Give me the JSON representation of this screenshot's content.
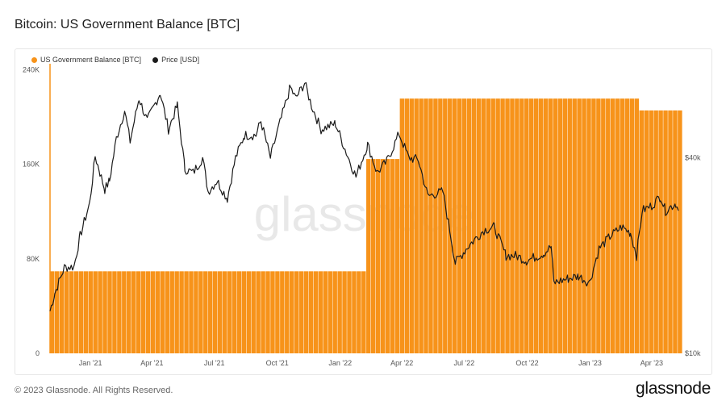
{
  "title": "Bitcoin: US Government Balance [BTC]",
  "footer": {
    "copyright": "© 2023 Glassnode. All Rights Reserved.",
    "logo": "glassnode"
  },
  "watermark": "glassnode",
  "colors": {
    "balance": "#f7931a",
    "balance_edge": "#e0820f",
    "price": "#1a1a1a",
    "axis_line": "#f7931a"
  },
  "chart_data": {
    "type": "bar",
    "legend_placement": "top-left",
    "grid": false,
    "x_ticks": [
      "Jan '21",
      "Apr '21",
      "Jul '21",
      "Oct '21",
      "Jan '22",
      "Apr '22",
      "Jul '22",
      "Oct '22",
      "Jan '23",
      "Apr '23"
    ],
    "x_range": [
      "2020-11-03",
      "2023-05-10"
    ],
    "left_axis": {
      "ticks": [
        "0",
        "80K",
        "160K",
        "240K"
      ],
      "tick_values": [
        0,
        80000,
        160000,
        240000
      ],
      "ylim": [
        0,
        245000
      ]
    },
    "right_axis": {
      "scale": "log",
      "ticks": [
        "$10k",
        "$40k"
      ],
      "tick_values": [
        10000,
        40000
      ],
      "ylim": [
        10000,
        78000
      ]
    },
    "series": [
      {
        "name": "US Government Balance [BTC]",
        "type": "bar",
        "axis": "left",
        "points": [
          [
            "2020-11-03",
            69400
          ],
          [
            "2022-02-08",
            164400
          ],
          [
            "2022-03-29",
            215500
          ],
          [
            "2022-04-12",
            215500
          ],
          [
            "2023-03-08",
            215500
          ],
          [
            "2023-03-09",
            205500
          ],
          [
            "2023-05-10",
            205500
          ]
        ]
      },
      {
        "name": "Price [USD]",
        "type": "line",
        "axis": "right",
        "points": [
          [
            "2020-11-03",
            13500
          ],
          [
            "2020-11-10",
            15300
          ],
          [
            "2020-11-24",
            18400
          ],
          [
            "2020-12-08",
            18500
          ],
          [
            "2020-12-17",
            23000
          ],
          [
            "2020-12-31",
            29000
          ],
          [
            "2021-01-08",
            40500
          ],
          [
            "2021-01-15",
            36000
          ],
          [
            "2021-01-22",
            32000
          ],
          [
            "2021-01-29",
            34000
          ],
          [
            "2021-02-08",
            46000
          ],
          [
            "2021-02-20",
            56000
          ],
          [
            "2021-02-28",
            45000
          ],
          [
            "2021-03-13",
            61000
          ],
          [
            "2021-03-25",
            52000
          ],
          [
            "2021-04-13",
            63500
          ],
          [
            "2021-04-25",
            49000
          ],
          [
            "2021-05-08",
            58000
          ],
          [
            "2021-05-19",
            37000
          ],
          [
            "2021-05-31",
            36000
          ],
          [
            "2021-06-14",
            40000
          ],
          [
            "2021-06-22",
            31500
          ],
          [
            "2021-07-05",
            34000
          ],
          [
            "2021-07-20",
            30000
          ],
          [
            "2021-08-01",
            40000
          ],
          [
            "2021-08-14",
            47000
          ],
          [
            "2021-08-31",
            47000
          ],
          [
            "2021-09-07",
            52000
          ],
          [
            "2021-09-21",
            40000
          ],
          [
            "2021-10-01",
            48000
          ],
          [
            "2021-10-20",
            66000
          ],
          [
            "2021-10-28",
            61000
          ],
          [
            "2021-11-10",
            68000
          ],
          [
            "2021-11-20",
            58000
          ],
          [
            "2021-12-04",
            49000
          ],
          [
            "2021-12-25",
            51000
          ],
          [
            "2022-01-10",
            41500
          ],
          [
            "2022-01-24",
            35000
          ],
          [
            "2022-02-10",
            44000
          ],
          [
            "2022-02-24",
            36000
          ],
          [
            "2022-03-10",
            39000
          ],
          [
            "2022-03-28",
            47500
          ],
          [
            "2022-04-11",
            40000
          ],
          [
            "2022-04-25",
            39500
          ],
          [
            "2022-05-09",
            30500
          ],
          [
            "2022-05-31",
            31500
          ],
          [
            "2022-06-13",
            22000
          ],
          [
            "2022-06-18",
            19000
          ],
          [
            "2022-07-08",
            21500
          ],
          [
            "2022-07-30",
            24000
          ],
          [
            "2022-08-14",
            24500
          ],
          [
            "2022-08-31",
            20000
          ],
          [
            "2022-09-15",
            20000
          ],
          [
            "2022-09-30",
            19300
          ],
          [
            "2022-10-25",
            20300
          ],
          [
            "2022-11-05",
            21300
          ],
          [
            "2022-11-09",
            16500
          ],
          [
            "2022-11-30",
            17000
          ],
          [
            "2022-12-15",
            17300
          ],
          [
            "2022-12-31",
            16500
          ],
          [
            "2023-01-14",
            21000
          ],
          [
            "2023-01-31",
            23000
          ],
          [
            "2023-02-16",
            24500
          ],
          [
            "2023-03-01",
            23500
          ],
          [
            "2023-03-10",
            20000
          ],
          [
            "2023-03-18",
            27500
          ],
          [
            "2023-04-01",
            28500
          ],
          [
            "2023-04-14",
            30500
          ],
          [
            "2023-04-21",
            27500
          ],
          [
            "2023-05-06",
            29000
          ],
          [
            "2023-05-10",
            27500
          ]
        ]
      }
    ]
  }
}
